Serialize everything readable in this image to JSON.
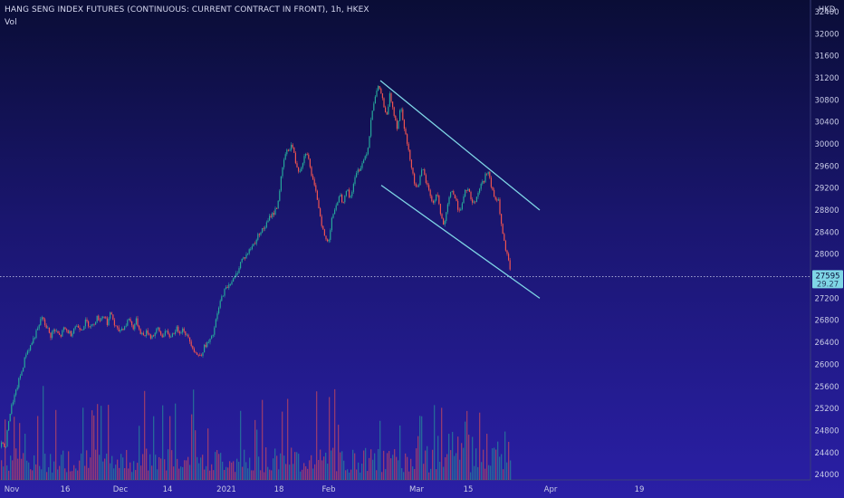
{
  "header": {
    "title": "HANG SENG INDEX FUTURES (CONTINUOUS: CURRENT CONTRACT IN FRONT), 1h, HKEX",
    "vol_label": "Vol",
    "currency": "HKD"
  },
  "colors": {
    "up": "#26a69a",
    "down": "#ef5350",
    "trendline": "#7fd6e6",
    "price_line": "#cfd3ee",
    "price_box": "#7fd6e6"
  },
  "chart_data": {
    "type": "candlestick",
    "y_ticks": [
      24000,
      24400,
      24800,
      25200,
      25600,
      26000,
      26400,
      26800,
      27200,
      27600,
      28000,
      28400,
      28800,
      29200,
      29600,
      30000,
      30400,
      30800,
      31200,
      31600,
      32000,
      32400
    ],
    "ylim": [
      23800,
      32480
    ],
    "x_ticks": [
      "Nov",
      "16",
      "Dec",
      "14",
      "2021",
      "18",
      "Feb",
      "Mar",
      "15",
      "Apr",
      "19"
    ],
    "current_price": "27595",
    "current_price_sub": "29.27",
    "price_path": [
      [
        0,
        24500
      ],
      [
        2,
        24650
      ],
      [
        5,
        24400
      ],
      [
        9,
        25000
      ],
      [
        13,
        25300
      ],
      [
        17,
        25500
      ],
      [
        20,
        25700
      ],
      [
        24,
        25900
      ],
      [
        28,
        26200
      ],
      [
        32,
        26300
      ],
      [
        36,
        26450
      ],
      [
        40,
        26600
      ],
      [
        43,
        26700
      ],
      [
        45,
        26900
      ],
      [
        48,
        26750
      ],
      [
        52,
        26650
      ],
      [
        55,
        26500
      ],
      [
        58,
        26620
      ],
      [
        62,
        26580
      ],
      [
        66,
        26500
      ],
      [
        70,
        26650
      ],
      [
        74,
        26600
      ],
      [
        78,
        26550
      ],
      [
        82,
        26700
      ],
      [
        86,
        26680
      ],
      [
        90,
        26650
      ],
      [
        94,
        26780
      ],
      [
        98,
        26720
      ],
      [
        102,
        26700
      ],
      [
        106,
        26850
      ],
      [
        110,
        26820
      ],
      [
        114,
        26900
      ],
      [
        118,
        26750
      ],
      [
        122,
        26950
      ],
      [
        126,
        26700
      ],
      [
        130,
        26600
      ],
      [
        134,
        26650
      ],
      [
        138,
        26700
      ],
      [
        142,
        26850
      ],
      [
        146,
        26650
      ],
      [
        150,
        26800
      ],
      [
        154,
        26600
      ],
      [
        158,
        26520
      ],
      [
        162,
        26600
      ],
      [
        166,
        26500
      ],
      [
        170,
        26550
      ],
      [
        174,
        26650
      ],
      [
        178,
        26500
      ],
      [
        182,
        26600
      ],
      [
        186,
        26500
      ],
      [
        190,
        26550
      ],
      [
        194,
        26650
      ],
      [
        198,
        26600
      ],
      [
        202,
        26650
      ],
      [
        206,
        26500
      ],
      [
        210,
        26400
      ],
      [
        214,
        26250
      ],
      [
        218,
        26150
      ],
      [
        222,
        26200
      ],
      [
        226,
        26350
      ],
      [
        230,
        26400
      ],
      [
        234,
        26500
      ],
      [
        238,
        26800
      ],
      [
        242,
        27100
      ],
      [
        246,
        27300
      ],
      [
        250,
        27400
      ],
      [
        254,
        27500
      ],
      [
        258,
        27550
      ],
      [
        262,
        27700
      ],
      [
        266,
        27900
      ],
      [
        270,
        27950
      ],
      [
        274,
        28050
      ],
      [
        278,
        28150
      ],
      [
        282,
        28250
      ],
      [
        286,
        28400
      ],
      [
        290,
        28450
      ],
      [
        294,
        28550
      ],
      [
        298,
        28700
      ],
      [
        302,
        28750
      ],
      [
        306,
        28900
      ],
      [
        310,
        29400
      ],
      [
        314,
        29800
      ],
      [
        318,
        29900
      ],
      [
        322,
        30000
      ],
      [
        326,
        29650
      ],
      [
        330,
        29500
      ],
      [
        334,
        29700
      ],
      [
        338,
        29900
      ],
      [
        342,
        29550
      ],
      [
        346,
        29250
      ],
      [
        350,
        29000
      ],
      [
        354,
        28600
      ],
      [
        358,
        28300
      ],
      [
        362,
        28200
      ],
      [
        366,
        28700
      ],
      [
        370,
        28800
      ],
      [
        374,
        29100
      ],
      [
        378,
        28950
      ],
      [
        382,
        29200
      ],
      [
        386,
        29000
      ],
      [
        390,
        29300
      ],
      [
        394,
        29500
      ],
      [
        398,
        29600
      ],
      [
        402,
        29750
      ],
      [
        406,
        29950
      ],
      [
        410,
        30600
      ],
      [
        414,
        30900
      ],
      [
        418,
        31050
      ],
      [
        422,
        30800
      ],
      [
        426,
        30450
      ],
      [
        430,
        30900
      ],
      [
        434,
        30600
      ],
      [
        438,
        30300
      ],
      [
        442,
        30700
      ],
      [
        446,
        30300
      ],
      [
        450,
        29900
      ],
      [
        454,
        29600
      ],
      [
        458,
        29200
      ],
      [
        462,
        29300
      ],
      [
        466,
        29550
      ],
      [
        470,
        29300
      ],
      [
        474,
        29100
      ],
      [
        478,
        28900
      ],
      [
        482,
        29150
      ],
      [
        486,
        28700
      ],
      [
        490,
        28500
      ],
      [
        494,
        28900
      ],
      [
        498,
        29200
      ],
      [
        502,
        29000
      ],
      [
        506,
        28800
      ],
      [
        510,
        28900
      ],
      [
        514,
        29200
      ],
      [
        518,
        29100
      ],
      [
        522,
        28900
      ],
      [
        526,
        29050
      ],
      [
        530,
        29250
      ],
      [
        534,
        29350
      ],
      [
        538,
        29550
      ],
      [
        542,
        29200
      ],
      [
        546,
        29000
      ],
      [
        550,
        28950
      ],
      [
        554,
        28400
      ],
      [
        558,
        28050
      ],
      [
        562,
        27800
      ],
      [
        564,
        27595
      ]
    ],
    "trendlines": [
      {
        "x1": 420,
        "y1": 31150,
        "x2": 596,
        "y2": 28800
      },
      {
        "x1": 421,
        "y1": 29250,
        "x2": 596,
        "y2": 27200
      }
    ]
  }
}
